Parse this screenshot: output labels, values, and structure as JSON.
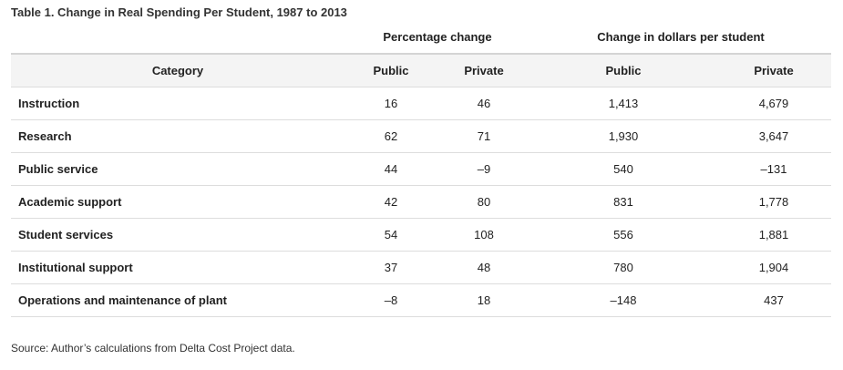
{
  "title": "Table 1. Change in Real Spending Per Student, 1987 to 2013",
  "group_headers": {
    "percentage": "Percentage change",
    "dollars": "Change in dollars per student"
  },
  "columns": [
    "Category",
    "Public",
    "Private",
    "Public",
    "Private"
  ],
  "rows": [
    {
      "category": "Instruction",
      "pct_public": "16",
      "pct_private": "46",
      "dol_public": "1,413",
      "dol_private": "4,679"
    },
    {
      "category": "Research",
      "pct_public": "62",
      "pct_private": "71",
      "dol_public": "1,930",
      "dol_private": "3,647"
    },
    {
      "category": "Public service",
      "pct_public": "44",
      "pct_private": "–9",
      "dol_public": "540",
      "dol_private": "–131"
    },
    {
      "category": "Academic support",
      "pct_public": "42",
      "pct_private": "80",
      "dol_public": "831",
      "dol_private": "1,778"
    },
    {
      "category": "Student services",
      "pct_public": "54",
      "pct_private": "108",
      "dol_public": "556",
      "dol_private": "1,881"
    },
    {
      "category": "Institutional support",
      "pct_public": "37",
      "pct_private": "48",
      "dol_public": "780",
      "dol_private": "1,904"
    },
    {
      "category": "Operations and maintenance of plant",
      "pct_public": "–8",
      "pct_private": "18",
      "dol_public": "–148",
      "dol_private": "437"
    }
  ],
  "source": "Source: Author’s calculations from Delta Cost Project data.",
  "chart_data": {
    "type": "table",
    "title": "Table 1. Change in Real Spending Per Student, 1987 to 2013",
    "column_groups": [
      {
        "name": "Percentage change",
        "columns": [
          "Public",
          "Private"
        ]
      },
      {
        "name": "Change in dollars per student",
        "columns": [
          "Public",
          "Private"
        ]
      }
    ],
    "categories": [
      "Instruction",
      "Research",
      "Public service",
      "Academic support",
      "Student services",
      "Institutional support",
      "Operations and maintenance of plant"
    ],
    "series": [
      {
        "name": "Percentage change — Public",
        "values": [
          16,
          62,
          44,
          42,
          54,
          37,
          -8
        ]
      },
      {
        "name": "Percentage change — Private",
        "values": [
          46,
          71,
          -9,
          80,
          108,
          48,
          18
        ]
      },
      {
        "name": "Change in dollars per student — Public",
        "values": [
          1413,
          1930,
          540,
          831,
          556,
          780,
          -148
        ]
      },
      {
        "name": "Change in dollars per student — Private",
        "values": [
          4679,
          3647,
          -131,
          1778,
          1881,
          1904,
          437
        ]
      }
    ],
    "source": "Source: Author’s calculations from Delta Cost Project data."
  }
}
